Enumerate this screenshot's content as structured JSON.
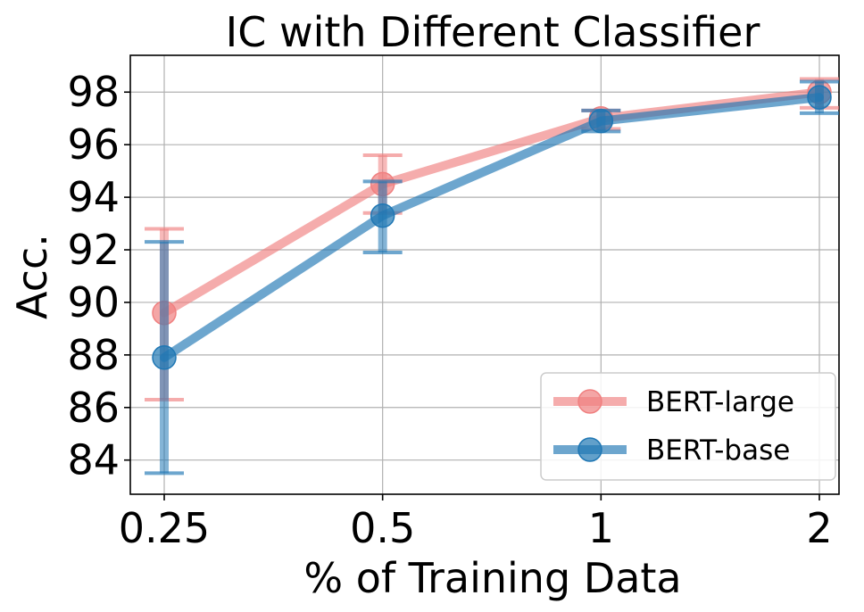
{
  "chart_data": {
    "type": "line",
    "title": "IC with Different Classifier",
    "xlabel": "% of Training Data",
    "ylabel": "Acc.",
    "x_categories": [
      "0.25",
      "0.5",
      "1",
      "2"
    ],
    "y_ticks": [
      84,
      86,
      88,
      90,
      92,
      94,
      96,
      98
    ],
    "ylim": [
      82.7,
      99.4
    ],
    "grid": true,
    "legend_position": "lower right",
    "series": [
      {
        "name": "BERT-large",
        "color": "#f08080",
        "values": [
          89.6,
          94.5,
          97.0,
          98.0
        ],
        "err_low": [
          86.3,
          93.4,
          96.6,
          97.4
        ],
        "err_high": [
          92.8,
          95.6,
          97.3,
          98.5
        ]
      },
      {
        "name": "BERT-base",
        "color": "#1f77b4",
        "values": [
          87.9,
          93.3,
          96.9,
          97.8
        ],
        "err_low": [
          83.5,
          91.9,
          96.5,
          97.2
        ],
        "err_high": [
          92.3,
          94.6,
          97.3,
          98.4
        ]
      }
    ]
  }
}
